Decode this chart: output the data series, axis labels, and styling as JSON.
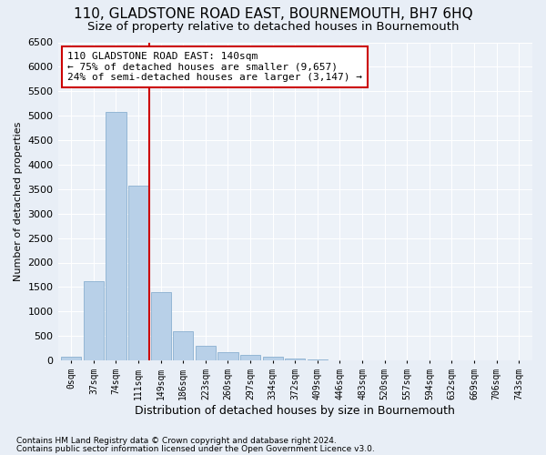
{
  "title": "110, GLADSTONE ROAD EAST, BOURNEMOUTH, BH7 6HQ",
  "subtitle": "Size of property relative to detached houses in Bournemouth",
  "xlabel": "Distribution of detached houses by size in Bournemouth",
  "ylabel": "Number of detached properties",
  "footnote1": "Contains HM Land Registry data © Crown copyright and database right 2024.",
  "footnote2": "Contains public sector information licensed under the Open Government Licence v3.0.",
  "bar_labels": [
    "0sqm",
    "37sqm",
    "74sqm",
    "111sqm",
    "149sqm",
    "186sqm",
    "223sqm",
    "260sqm",
    "297sqm",
    "334sqm",
    "372sqm",
    "409sqm",
    "446sqm",
    "483sqm",
    "520sqm",
    "557sqm",
    "594sqm",
    "632sqm",
    "669sqm",
    "706sqm",
    "743sqm"
  ],
  "bar_values": [
    75,
    1625,
    5080,
    3580,
    1400,
    600,
    300,
    160,
    110,
    80,
    40,
    20,
    10,
    5,
    3,
    2,
    1,
    1,
    0,
    0,
    0
  ],
  "bar_color": "#b8d0e8",
  "bar_edge_color": "#8ab0d0",
  "vline_color": "#cc0000",
  "annotation_text": "110 GLADSTONE ROAD EAST: 140sqm\n← 75% of detached houses are smaller (9,657)\n24% of semi-detached houses are larger (3,147) →",
  "annotation_box_color": "#cc0000",
  "ylim": [
    0,
    6500
  ],
  "yticks": [
    0,
    500,
    1000,
    1500,
    2000,
    2500,
    3000,
    3500,
    4000,
    4500,
    5000,
    5500,
    6000,
    6500
  ],
  "bg_color": "#e8eef6",
  "plot_bg_color": "#edf2f8",
  "title_fontsize": 11,
  "subtitle_fontsize": 9.5,
  "xlabel_fontsize": 9,
  "ylabel_fontsize": 8,
  "tick_fontsize": 8,
  "annot_fontsize": 8,
  "grid_color": "#ffffff",
  "vline_xindex": 3.5
}
